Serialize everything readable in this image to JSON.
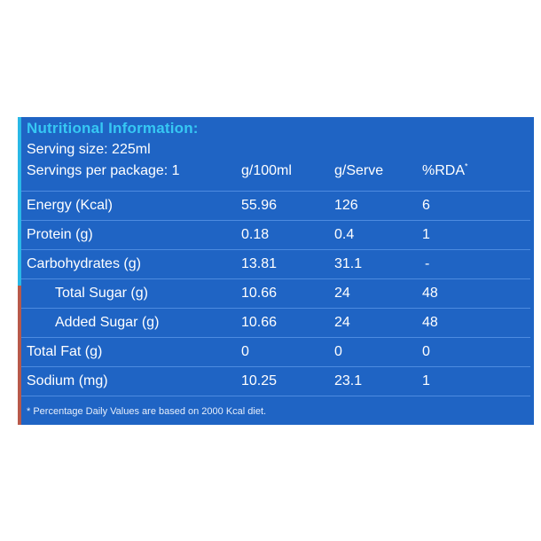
{
  "panel": {
    "title": "Nutritional Information:",
    "serving_size": "Serving size: 225ml",
    "servings_per_package": "Servings per package: 1",
    "footnote": "* Percentage Daily Values are based on 2000 Kcal diet."
  },
  "columns": {
    "per100": "g/100ml",
    "perServe": "g/Serve",
    "rda": "%RDA",
    "rda_mark": "*"
  },
  "rows": [
    {
      "name": "Energy (Kcal)",
      "per100": "55.96",
      "perServe": "126",
      "rda": "6"
    },
    {
      "name": "Protein (g)",
      "per100": "0.18",
      "perServe": "0.4",
      "rda": "1"
    },
    {
      "name": "Carbohydrates (g)",
      "per100": "13.81",
      "perServe": "31.1",
      "rda": "-"
    },
    {
      "name": "Total Sugar (g)",
      "per100": "10.66",
      "perServe": "24",
      "rda": "48"
    },
    {
      "name": "Added Sugar (g)",
      "per100": "10.66",
      "perServe": "24",
      "rda": "48"
    },
    {
      "name": "Total Fat (g)",
      "per100": "0",
      "perServe": "0",
      "rda": "0"
    },
    {
      "name": "Sodium (mg)",
      "per100": "10.25",
      "perServe": "23.1",
      "rda": "1"
    }
  ],
  "colors": {
    "panel_background": "#1f64c4",
    "title": "#36c8f4",
    "text": "#ffffff"
  }
}
